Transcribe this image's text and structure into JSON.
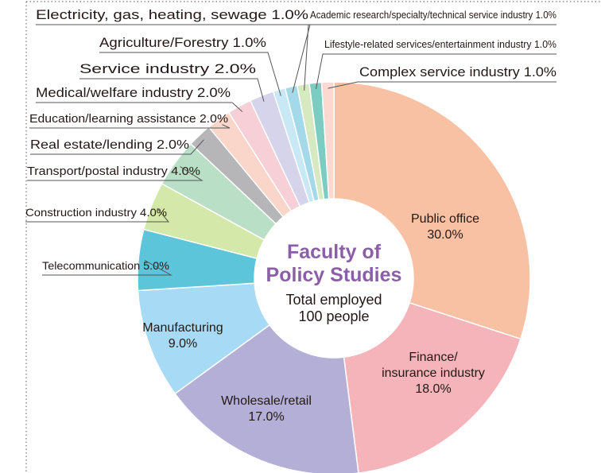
{
  "chart_data": {
    "type": "donut",
    "center_title": "Faculty of\nPolicy Studies",
    "center_subtitle": "Total employed\n100 people",
    "categories": [
      "Public office",
      "Finance/\ninsurance industry",
      "Wholesale/retail",
      "Manufacturing",
      "Telecommunication",
      "Construction industry",
      "Transport/postal industry",
      "Real estate/lending",
      "Education/learning assistance",
      "Medical/welfare industry",
      "Service industry",
      "Agriculture/Forestry",
      "Electricity, gas, heating, sewage",
      "Academic research/specialty/technical service industry",
      "Lifestyle-related services/entertainment industry",
      "Complex service industry"
    ],
    "values": [
      30,
      18,
      17,
      9,
      5,
      4,
      4,
      2,
      2,
      2,
      2,
      1,
      1,
      1,
      1,
      1
    ],
    "value_labels": [
      "30.0%",
      "18.0%",
      "17.0%",
      "9.0%",
      "5.0%",
      "4.0%",
      "4.0%",
      "2.0%",
      "2.0%",
      "2.0%",
      "2.0%",
      "1.0%",
      "1.0%",
      "1.0%",
      "1.0%",
      "1.0%"
    ],
    "colors": [
      "#f9c1a3",
      "#f5b4b9",
      "#b4afd7",
      "#a7dbf5",
      "#5cc5d9",
      "#d4e8a9",
      "#b9dfc6",
      "#b6b6b9",
      "#f9d6c9",
      "#f7cfd7",
      "#d6d4eb",
      "#c9e8f6",
      "#a4d9e9",
      "#d6e9c1",
      "#7dccc1",
      "#fbd8d0"
    ]
  }
}
